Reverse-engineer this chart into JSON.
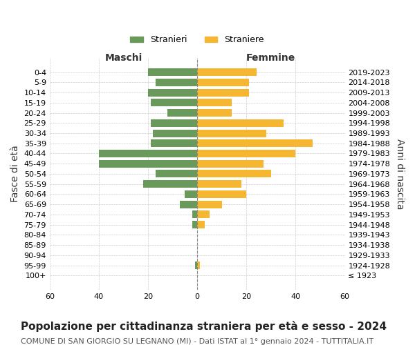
{
  "age_groups": [
    "100+",
    "95-99",
    "90-94",
    "85-89",
    "80-84",
    "75-79",
    "70-74",
    "65-69",
    "60-64",
    "55-59",
    "50-54",
    "45-49",
    "40-44",
    "35-39",
    "30-34",
    "25-29",
    "20-24",
    "15-19",
    "10-14",
    "5-9",
    "0-4"
  ],
  "birth_years": [
    "≤ 1923",
    "1924-1928",
    "1929-1933",
    "1934-1938",
    "1939-1943",
    "1944-1948",
    "1949-1953",
    "1954-1958",
    "1959-1963",
    "1964-1968",
    "1969-1973",
    "1974-1978",
    "1979-1983",
    "1984-1988",
    "1989-1993",
    "1994-1998",
    "1999-2003",
    "2004-2008",
    "2009-2013",
    "2014-2018",
    "2019-2023"
  ],
  "maschi": [
    0,
    1,
    0,
    0,
    0,
    2,
    2,
    7,
    5,
    22,
    17,
    40,
    40,
    19,
    18,
    19,
    12,
    19,
    20,
    17,
    20
  ],
  "femmine": [
    0,
    1,
    0,
    0,
    0,
    3,
    5,
    10,
    20,
    18,
    30,
    27,
    40,
    47,
    28,
    35,
    14,
    14,
    21,
    21,
    24
  ],
  "maschi_color": "#6a9a5b",
  "femmine_color": "#f5b731",
  "background_color": "#ffffff",
  "grid_color": "#cccccc",
  "title": "Popolazione per cittadinanza straniera per età e sesso - 2024",
  "subtitle": "COMUNE DI SAN GIORGIO SU LEGNANO (MI) - Dati ISTAT al 1° gennaio 2024 - TUTTITALIA.IT",
  "xlabel_left": "Maschi",
  "xlabel_right": "Femmine",
  "ylabel_left": "Fasce di età",
  "ylabel_right": "Anni di nascita",
  "legend_maschi": "Stranieri",
  "legend_femmine": "Straniere",
  "xlim": 60,
  "title_fontsize": 11,
  "subtitle_fontsize": 8,
  "tick_fontsize": 8,
  "label_fontsize": 10
}
